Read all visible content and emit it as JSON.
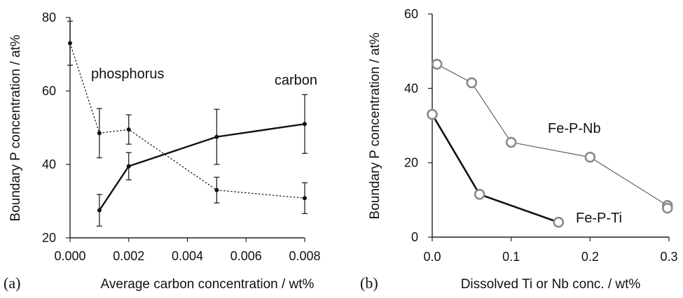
{
  "chart_data": [
    {
      "type": "line",
      "panel_label": "(a)",
      "title": "",
      "xlabel": "Average carbon concentration / wt%",
      "ylabel": "Boundary P concentration / at%",
      "xlim": [
        0,
        0.008
      ],
      "ylim": [
        20,
        80
      ],
      "xticks": [
        "0.000",
        "0.002",
        "0.004",
        "0.006",
        "0.008"
      ],
      "yticks": [
        "20",
        "40",
        "60",
        "80"
      ],
      "grid": false,
      "series": [
        {
          "name": "phosphorus",
          "style": "dotted",
          "color": "#111111",
          "points": [
            {
              "x": 0.0,
              "y": 73,
              "err": 6
            },
            {
              "x": 0.001,
              "y": 48.5,
              "err": 6.7
            },
            {
              "x": 0.002,
              "y": 49.5,
              "err": 4
            },
            {
              "x": 0.005,
              "y": 33,
              "err": 3.5
            },
            {
              "x": 0.008,
              "y": 30.8,
              "err": 4.2
            }
          ]
        },
        {
          "name": "carbon",
          "style": "solid",
          "color": "#111111",
          "points": [
            {
              "x": 0.001,
              "y": 27.5,
              "err": 4.3
            },
            {
              "x": 0.002,
              "y": 39.5,
              "err": 3.7
            },
            {
              "x": 0.005,
              "y": 47.5,
              "err": 7.5
            },
            {
              "x": 0.008,
              "y": 51,
              "err": 8
            }
          ]
        }
      ]
    },
    {
      "type": "line",
      "panel_label": "(b)",
      "title": "",
      "xlabel": "Dissolved Ti or Nb conc. / wt%",
      "ylabel": "Boundary P concentration / at%",
      "xlim": [
        0,
        0.3
      ],
      "ylim": [
        0,
        60
      ],
      "xticks": [
        "0.0",
        "0.1",
        "0.2",
        "0.3"
      ],
      "yticks": [
        "0",
        "20",
        "40",
        "60"
      ],
      "grid": false,
      "series": [
        {
          "name": "Fe-P-Nb",
          "style": "thin",
          "color": "#555555",
          "points": [
            {
              "x": 0.006,
              "y": 46.5
            },
            {
              "x": 0.05,
              "y": 41.5
            },
            {
              "x": 0.1,
              "y": 25.5
            },
            {
              "x": 0.2,
              "y": 21.5
            },
            {
              "x": 0.298,
              "y": 8.5
            },
            {
              "x": 0.298,
              "y": 7.8
            }
          ]
        },
        {
          "name": "Fe-P-Ti",
          "style": "thick",
          "color": "#111111",
          "points": [
            {
              "x": 0.0,
              "y": 33
            },
            {
              "x": 0.06,
              "y": 11.5
            },
            {
              "x": 0.16,
              "y": 4
            }
          ]
        }
      ]
    }
  ]
}
